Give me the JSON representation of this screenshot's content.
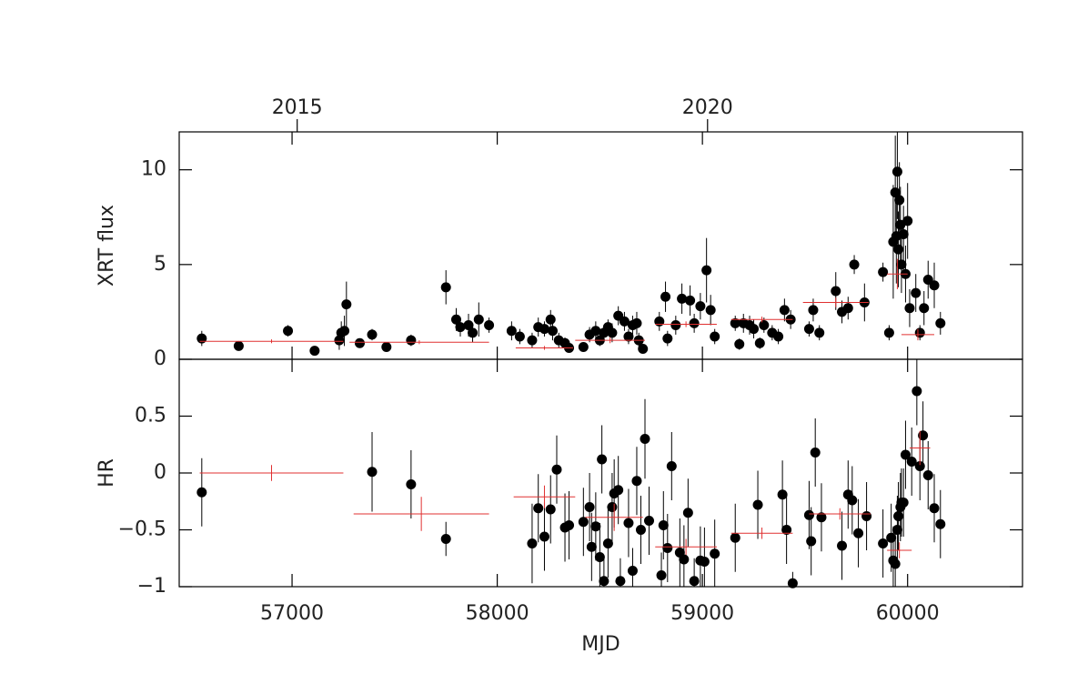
{
  "chart_data": [
    {
      "type": "scatter",
      "ylabel": "XRT flux",
      "xlim": [
        56450,
        60560
      ],
      "ylim": [
        0,
        12
      ],
      "yticks": [
        0,
        5,
        10
      ],
      "x2ticks": [
        {
          "value": 57025,
          "label": "2015"
        },
        {
          "value": 59025,
          "label": "2020"
        }
      ],
      "series": [
        {
          "color": "#000000",
          "marker": "circle",
          "x": [
            56560,
            56740,
            56980,
            57110,
            57230,
            57240,
            57255,
            57265,
            57330,
            57390,
            57460,
            57580,
            57750,
            57800,
            57820,
            57860,
            57880,
            57910,
            57960,
            58070,
            58110,
            58170,
            58200,
            58230,
            58260,
            58270,
            58300,
            58330,
            58350,
            58420,
            58450,
            58480,
            58500,
            58520,
            58540,
            58560,
            58590,
            58620,
            58640,
            58660,
            58680,
            58690,
            58710,
            58790,
            58820,
            58830,
            58870,
            58900,
            58940,
            58960,
            58990,
            59020,
            59040,
            59060,
            59160,
            59180,
            59200,
            59230,
            59250,
            59280,
            59300,
            59340,
            59370,
            59400,
            59430,
            59520,
            59540,
            59570,
            59650,
            59680,
            59710,
            59740,
            59790,
            59880,
            59910,
            59930,
            59940,
            59945,
            59950,
            59955,
            59960,
            59965,
            59970,
            59980,
            59990,
            60000,
            60010,
            60040,
            60060,
            60080,
            60100,
            60130,
            60160
          ],
          "values": [
            1.1,
            0.7,
            1.5,
            0.45,
            1.0,
            1.4,
            1.5,
            2.9,
            0.85,
            1.3,
            0.65,
            1.0,
            3.8,
            2.1,
            1.7,
            1.8,
            1.4,
            2.1,
            1.8,
            1.5,
            1.2,
            1.0,
            1.7,
            1.6,
            2.1,
            1.5,
            1.0,
            0.85,
            0.6,
            0.65,
            1.3,
            1.5,
            1.0,
            1.4,
            1.7,
            1.4,
            2.3,
            2.0,
            1.2,
            1.8,
            1.9,
            1.0,
            0.55,
            2.0,
            3.3,
            1.1,
            1.8,
            3.2,
            3.1,
            1.9,
            2.8,
            4.7,
            2.6,
            1.2,
            1.9,
            0.8,
            1.9,
            1.8,
            1.6,
            0.85,
            1.8,
            1.4,
            1.2,
            2.6,
            2.1,
            1.6,
            2.6,
            1.4,
            3.6,
            2.5,
            2.7,
            5.0,
            3.0,
            4.6,
            1.4,
            6.2,
            8.8,
            6.5,
            9.9,
            5.8,
            8.4,
            7.1,
            5.0,
            6.6,
            4.5,
            7.3,
            2.7,
            3.5,
            1.4,
            2.7,
            4.2,
            3.9,
            1.9
          ],
          "errors": [
            0.4,
            0.2,
            0.3,
            0.15,
            0.5,
            0.6,
            0.8,
            1.2,
            0.2,
            0.3,
            0.2,
            0.3,
            0.9,
            0.6,
            0.5,
            0.6,
            0.5,
            0.9,
            0.4,
            0.5,
            0.4,
            0.4,
            0.5,
            0.4,
            0.5,
            0.5,
            0.4,
            0.3,
            0.2,
            0.2,
            0.4,
            0.5,
            0.3,
            0.4,
            0.4,
            0.5,
            0.5,
            0.5,
            0.4,
            0.5,
            0.6,
            0.4,
            0.2,
            0.5,
            0.8,
            0.4,
            0.5,
            0.8,
            0.8,
            0.5,
            0.7,
            1.7,
            0.8,
            0.4,
            0.4,
            0.3,
            0.5,
            0.5,
            0.5,
            0.3,
            0.4,
            0.4,
            0.4,
            0.6,
            0.5,
            0.4,
            0.6,
            0.4,
            1.0,
            0.6,
            0.6,
            0.5,
            1.0,
            0.5,
            0.4,
            3,
            3,
            2.5,
            2.5,
            2,
            2,
            2,
            1.5,
            1.5,
            1.5,
            2,
            1,
            1,
            0.4,
            0.9,
            1,
            1.2,
            0.6
          ]
        },
        {
          "color": "#e03030",
          "marker": "cross",
          "x": [
            56900,
            57620,
            58230,
            58550,
            58920,
            59290,
            59650,
            59950,
            60050
          ],
          "xerr": [
            350,
            340,
            140,
            170,
            150,
            150,
            160,
            50,
            80
          ],
          "values": [
            0.95,
            0.9,
            0.6,
            1.0,
            1.85,
            2.1,
            3.0,
            4.5,
            1.3
          ],
          "errors": [
            0.1,
            0.1,
            0.1,
            0.15,
            0.15,
            0.15,
            0.25,
            0.8,
            0.3
          ]
        }
      ]
    },
    {
      "type": "scatter",
      "xlabel": "MJD",
      "ylabel": "HR",
      "xlim": [
        56450,
        60560
      ],
      "ylim": [
        -1,
        1
      ],
      "xticks": [
        57000,
        58000,
        59000,
        60000
      ],
      "yticks": [
        {
          "value": -1,
          "label": "−1"
        },
        {
          "value": -0.5,
          "label": "−0.5"
        },
        0,
        0.5
      ],
      "series": [
        {
          "color": "#000000",
          "marker": "circle",
          "x": [
            56560,
            57390,
            57580,
            57750,
            58170,
            58200,
            58230,
            58260,
            58290,
            58330,
            58350,
            58420,
            58450,
            58460,
            58480,
            58500,
            58510,
            58520,
            58540,
            58560,
            58570,
            58590,
            58600,
            58640,
            58660,
            58680,
            58700,
            58720,
            58740,
            58800,
            58810,
            58830,
            58850,
            58890,
            58910,
            58930,
            58960,
            58990,
            59010,
            59060,
            59160,
            59270,
            59390,
            59410,
            59440,
            59520,
            59530,
            59550,
            59580,
            59680,
            59710,
            59730,
            59760,
            59800,
            59880,
            59920,
            59930,
            59940,
            59950,
            59955,
            59965,
            59970,
            59980,
            59990,
            60020,
            60045,
            60060,
            60075,
            60100,
            60130,
            60160
          ],
          "values": [
            -0.17,
            0.01,
            -0.1,
            -0.58,
            -0.62,
            -0.31,
            -0.56,
            -0.32,
            0.03,
            -0.48,
            -0.46,
            -0.43,
            -0.3,
            -0.65,
            -0.47,
            -0.74,
            0.12,
            -0.95,
            -0.62,
            -0.3,
            -0.18,
            -0.15,
            -0.95,
            -0.44,
            -0.86,
            -0.07,
            -0.5,
            0.3,
            -0.42,
            -0.9,
            -0.46,
            -0.66,
            0.06,
            -0.7,
            -0.76,
            -0.35,
            -0.95,
            -0.77,
            -0.78,
            -0.71,
            -0.57,
            -0.28,
            -0.19,
            -0.5,
            -0.97,
            -0.37,
            -0.6,
            0.18,
            -0.39,
            -0.64,
            -0.19,
            -0.24,
            -0.53,
            -0.38,
            -0.62,
            -0.57,
            -0.77,
            -0.8,
            -0.5,
            -0.38,
            -0.3,
            -0.26,
            -0.26,
            0.16,
            0.1,
            0.72,
            0.06,
            0.33,
            -0.02,
            -0.31,
            -0.45
          ],
          "errors": [
            0.3,
            0.35,
            0.3,
            0.15,
            0.35,
            0.3,
            0.3,
            0.3,
            0.3,
            0.3,
            0.3,
            0.3,
            0.3,
            0.3,
            0.3,
            0.3,
            0.3,
            0.2,
            0.3,
            0.3,
            0.3,
            0.3,
            0.2,
            0.3,
            0.2,
            0.3,
            0.3,
            0.35,
            0.3,
            0.2,
            0.3,
            0.3,
            0.3,
            0.3,
            0.3,
            0.3,
            0.2,
            0.3,
            0.3,
            0.3,
            0.3,
            0.3,
            0.3,
            0.3,
            0.1,
            0.3,
            0.3,
            0.3,
            0.3,
            0.3,
            0.3,
            0.3,
            0.3,
            0.3,
            0.3,
            0.3,
            0.3,
            0.3,
            0.3,
            0.3,
            0.3,
            0.3,
            0.3,
            0.3,
            0.3,
            0.3,
            0.3,
            0.3,
            0.3,
            0.3,
            0.3
          ]
        },
        {
          "color": "#e03030",
          "marker": "cross",
          "x": [
            56900,
            57630,
            58230,
            58570,
            58920,
            59290,
            59670,
            59960,
            60060
          ],
          "xerr": [
            350,
            330,
            150,
            140,
            150,
            150,
            150,
            60,
            50
          ],
          "values": [
            0,
            -0.36,
            -0.21,
            -0.39,
            -0.65,
            -0.53,
            -0.36,
            -0.68,
            0.22
          ],
          "errors": [
            0.07,
            0.15,
            0.1,
            0.12,
            0.07,
            0.05,
            0.05,
            0.07,
            0.15
          ]
        }
      ]
    }
  ]
}
